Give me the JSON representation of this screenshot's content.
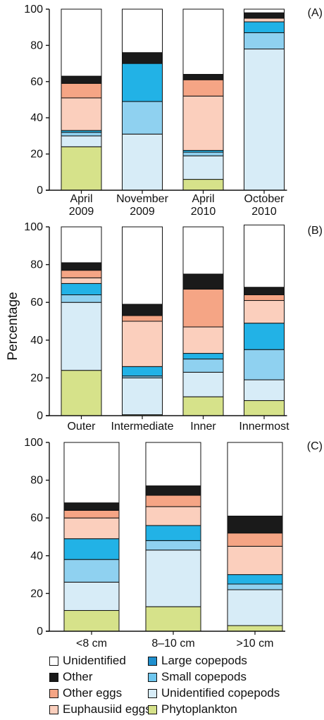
{
  "ylabel": "Percentage",
  "categories_order": [
    "Phytoplankton",
    "Unidentified copepods",
    "Small copepods",
    "Large copepods",
    "Euphausiid eggs",
    "Other eggs",
    "Other",
    "Unidentified"
  ],
  "colors": {
    "Phytoplankton": "#d6e28a",
    "Unidentified copepods": "#d7ecf7",
    "Small copepods": "#8fd1f0",
    "Large copepods": "#22b2e6",
    "Euphausiid eggs": "#fbcfbd",
    "Other eggs": "#f5a585",
    "Other": "#1a1a1a",
    "Unidentified": "#ffffff"
  },
  "legend": [
    {
      "name": "Unidentified",
      "color": "#ffffff"
    },
    {
      "name": "Large copepods",
      "color": "#1f8fce"
    },
    {
      "name": "Other",
      "color": "#1a1a1a"
    },
    {
      "name": "Small copepods",
      "color": "#6ec6ee"
    },
    {
      "name": "Other eggs",
      "color": "#f5a585"
    },
    {
      "name": "Unidentified copepods",
      "color": "#d7ecf7"
    },
    {
      "name": "Euphausiid eggs",
      "color": "#fbcfbd"
    },
    {
      "name": "Phytoplankton",
      "color": "#d6e28a"
    }
  ],
  "chart_data": [
    {
      "type": "bar",
      "stacked": true,
      "panel": "(A)",
      "ylim": [
        0,
        100
      ],
      "yticks": [
        0,
        20,
        40,
        60,
        80,
        100
      ],
      "categories": [
        [
          "April",
          "2009"
        ],
        [
          "November",
          "2009"
        ],
        [
          "April",
          "2010"
        ],
        [
          "October",
          "2010"
        ]
      ],
      "series": [
        {
          "name": "Phytoplankton",
          "values": [
            24,
            0,
            6,
            0
          ]
        },
        {
          "name": "Unidentified copepods",
          "values": [
            6,
            31,
            13,
            78
          ]
        },
        {
          "name": "Small copepods",
          "values": [
            2,
            18,
            2,
            9
          ]
        },
        {
          "name": "Large copepods",
          "values": [
            1,
            21,
            1,
            6
          ]
        },
        {
          "name": "Euphausiid eggs",
          "values": [
            18,
            0,
            30,
            2
          ]
        },
        {
          "name": "Other eggs",
          "values": [
            8,
            0,
            9,
            0
          ]
        },
        {
          "name": "Other",
          "values": [
            4,
            6,
            3,
            3
          ]
        },
        {
          "name": "Unidentified",
          "values": [
            37,
            24,
            36,
            2
          ]
        }
      ]
    },
    {
      "type": "bar",
      "stacked": true,
      "panel": "(B)",
      "ylim": [
        0,
        100
      ],
      "yticks": [
        0,
        20,
        40,
        60,
        80,
        100
      ],
      "categories": [
        [
          "Outer"
        ],
        [
          "Intermediate"
        ],
        [
          "Inner"
        ],
        [
          "Innermost"
        ]
      ],
      "series": [
        {
          "name": "Phytoplankton",
          "values": [
            24,
            0.5,
            10,
            8
          ]
        },
        {
          "name": "Unidentified copepods",
          "values": [
            36,
            19.5,
            13,
            11
          ]
        },
        {
          "name": "Small copepods",
          "values": [
            4,
            1,
            7,
            16
          ]
        },
        {
          "name": "Large copepods",
          "values": [
            6,
            5,
            3,
            14
          ]
        },
        {
          "name": "Euphausiid eggs",
          "values": [
            3,
            24,
            14,
            12
          ]
        },
        {
          "name": "Other eggs",
          "values": [
            4,
            3,
            20,
            3
          ]
        },
        {
          "name": "Other",
          "values": [
            4,
            6,
            8,
            4
          ]
        },
        {
          "name": "Unidentified",
          "values": [
            19,
            41,
            25,
            33
          ]
        }
      ]
    },
    {
      "type": "bar",
      "stacked": true,
      "panel": "(C)",
      "ylim": [
        0,
        100
      ],
      "yticks": [
        0,
        20,
        40,
        60,
        80,
        100
      ],
      "categories": [
        [
          "<8 cm"
        ],
        [
          "8–10 cm"
        ],
        [
          ">10 cm"
        ]
      ],
      "series": [
        {
          "name": "Phytoplankton",
          "values": [
            11,
            13,
            3
          ]
        },
        {
          "name": "Unidentified copepods",
          "values": [
            15,
            30,
            19
          ]
        },
        {
          "name": "Small copepods",
          "values": [
            12,
            5,
            3
          ]
        },
        {
          "name": "Large copepods",
          "values": [
            11,
            8,
            5
          ]
        },
        {
          "name": "Euphausiid eggs",
          "values": [
            11,
            10,
            15
          ]
        },
        {
          "name": "Other eggs",
          "values": [
            4,
            6,
            7
          ]
        },
        {
          "name": "Other",
          "values": [
            4,
            5,
            9
          ]
        },
        {
          "name": "Unidentified",
          "values": [
            32,
            23,
            39
          ]
        }
      ]
    }
  ]
}
